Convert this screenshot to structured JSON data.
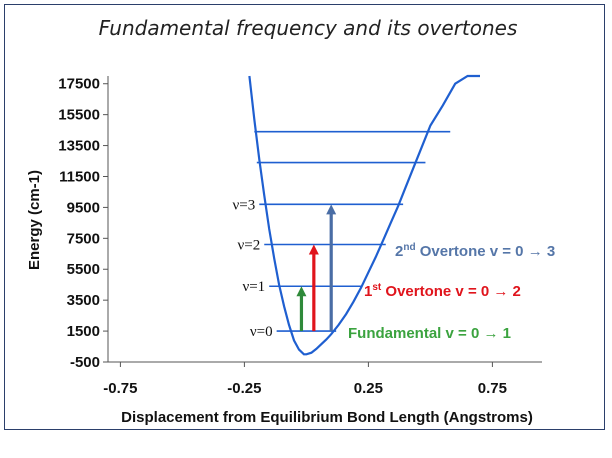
{
  "chart_data": {
    "type": "line",
    "title": "Fundamental frequency and its overtones",
    "xlabel": "Displacement from Equilibrium Bond Length (Angstroms)",
    "ylabel": "Energy (cm-1)",
    "xlim": [
      -0.8,
      0.95
    ],
    "ylim": [
      -500,
      18000
    ],
    "x_ticks": [
      "-0.75",
      "-0.25",
      "0.25",
      "0.75"
    ],
    "x_tick_values": [
      -0.75,
      -0.25,
      0.25,
      0.75
    ],
    "y_ticks": [
      "17500",
      "15500",
      "13500",
      "11500",
      "9500",
      "7500",
      "5500",
      "3500",
      "1500",
      "-500"
    ],
    "y_tick_values": [
      17500,
      15500,
      13500,
      11500,
      9500,
      7500,
      5500,
      3500,
      1500,
      -500
    ],
    "curve": {
      "name": "",
      "color": "#1f5fd0",
      "x": [
        -0.23,
        -0.21,
        -0.19,
        -0.17,
        -0.15,
        -0.13,
        -0.11,
        -0.09,
        -0.07,
        -0.05,
        -0.03,
        -0.01,
        0.0,
        0.02,
        0.04,
        0.06,
        0.08,
        0.1,
        0.13,
        0.16,
        0.19,
        0.22,
        0.25,
        0.28,
        0.31,
        0.34,
        0.37,
        0.4,
        0.43,
        0.46,
        0.5,
        0.55,
        0.6,
        0.65,
        0.7
      ],
      "y": [
        18000,
        15200,
        12600,
        10300,
        8100,
        6200,
        4500,
        3100,
        1900,
        900,
        300,
        0,
        0,
        100,
        350,
        650,
        950,
        1300,
        1900,
        2600,
        3400,
        4300,
        5300,
        6300,
        7400,
        8500,
        9600,
        10800,
        12000,
        13200,
        14800,
        16100,
        17500,
        18000,
        18000
      ]
    },
    "levels": [
      {
        "label": "ν=0",
        "energy": 1500,
        "x_left": -0.12,
        "x_right": 0.12
      },
      {
        "label": "ν=1",
        "energy": 4400,
        "x_left": -0.15,
        "x_right": 0.22
      },
      {
        "label": "ν=2",
        "energy": 7100,
        "x_left": -0.17,
        "x_right": 0.32
      },
      {
        "label": "ν=3",
        "energy": 9700,
        "x_left": -0.19,
        "x_right": 0.39
      },
      {
        "label": "",
        "energy": 12400,
        "x_left": -0.2,
        "x_right": 0.48
      },
      {
        "label": "",
        "energy": 14400,
        "x_left": -0.21,
        "x_right": 0.58
      }
    ],
    "level_color": "#1f5fd0",
    "transitions": [
      {
        "x": -0.02,
        "from": 1500,
        "to": 4400,
        "color": "#2f8a3a"
      },
      {
        "x": 0.03,
        "from": 1500,
        "to": 7100,
        "color": "#e0141c"
      },
      {
        "x": 0.1,
        "from": 1500,
        "to": 9700,
        "color": "#4a6da5"
      }
    ],
    "annotations": [
      {
        "prefix": "Fundamental ",
        "sup": "",
        "text": "Fundamental v = 0 → 1",
        "color": "#3ba33f"
      },
      {
        "prefix": "1",
        "sup": "st",
        "text": " Overtone  v = 0 → 2",
        "color": "#e0141c"
      },
      {
        "prefix": "2",
        "sup": "nd",
        "text": " Overtone v = 0 → 3",
        "color": "#5576a8"
      }
    ]
  }
}
